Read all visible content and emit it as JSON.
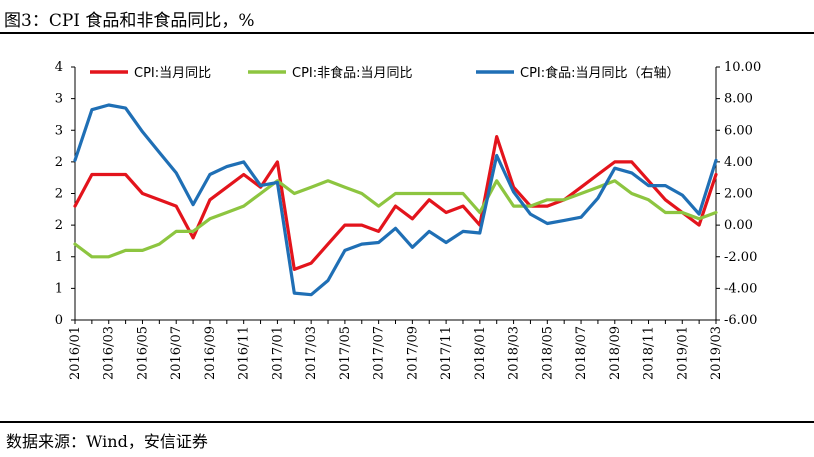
{
  "header": {
    "title": "图3：CPI 食品和非食品同比，%"
  },
  "footer": {
    "source": "数据来源：Wind，安信证券"
  },
  "chart_data": {
    "type": "line",
    "legend_position": "top",
    "grid": false,
    "x_tick_labels": [
      "2016/01",
      "2016/03",
      "2016/05",
      "2016/07",
      "2016/09",
      "2016/11",
      "2017/01",
      "2017/03",
      "2017/05",
      "2017/07",
      "2017/09",
      "2017/11",
      "2018/01",
      "2018/03",
      "2018/05",
      "2018/07",
      "2018/09",
      "2018/11",
      "2019/01",
      "2019/03"
    ],
    "x": [
      "2016/01",
      "2016/02",
      "2016/03",
      "2016/04",
      "2016/05",
      "2016/06",
      "2016/07",
      "2016/08",
      "2016/09",
      "2016/10",
      "2016/11",
      "2016/12",
      "2017/01",
      "2017/02",
      "2017/03",
      "2017/04",
      "2017/05",
      "2017/06",
      "2017/07",
      "2017/08",
      "2017/09",
      "2017/10",
      "2017/11",
      "2017/12",
      "2018/01",
      "2018/02",
      "2018/03",
      "2018/04",
      "2018/05",
      "2018/06",
      "2018/07",
      "2018/08",
      "2018/09",
      "2018/10",
      "2018/11",
      "2018/12",
      "2019/01",
      "2019/02",
      "2019/03"
    ],
    "y_left": {
      "lim": [
        0,
        4.0
      ],
      "tick_values": [
        0,
        0.5,
        1,
        1.5,
        2,
        2.5,
        3,
        3.5,
        4
      ],
      "tick_labels": [
        "0",
        "1",
        "1",
        "2",
        "2",
        "2",
        "3",
        "3",
        "4"
      ]
    },
    "y_right": {
      "lim": [
        -6,
        10
      ],
      "tick_values": [
        -6,
        -4,
        -2,
        0,
        2,
        4,
        6,
        8,
        10
      ],
      "tick_labels": [
        "-6.00",
        "-4.00",
        "-2.00",
        "0.00",
        "2.00",
        "4.00",
        "6.00",
        "8.00",
        "10.00"
      ]
    },
    "series": [
      {
        "name": "CPI:当月同比",
        "axis": "left",
        "color": "#e3141c",
        "values": [
          1.8,
          2.3,
          2.3,
          2.3,
          2.0,
          1.9,
          1.8,
          1.3,
          1.9,
          2.1,
          2.3,
          2.1,
          2.5,
          0.8,
          0.9,
          1.2,
          1.5,
          1.5,
          1.4,
          1.8,
          1.6,
          1.9,
          1.7,
          1.8,
          1.5,
          2.9,
          2.1,
          1.8,
          1.8,
          1.9,
          2.1,
          2.3,
          2.5,
          2.5,
          2.2,
          1.9,
          1.7,
          1.5,
          2.3
        ]
      },
      {
        "name": "CPI:非食品:当月同比",
        "axis": "left",
        "color": "#8dc540",
        "values": [
          1.2,
          1.0,
          1.0,
          1.1,
          1.1,
          1.2,
          1.4,
          1.4,
          1.6,
          1.7,
          1.8,
          2.0,
          2.2,
          2.0,
          2.1,
          2.2,
          2.1,
          2.0,
          1.8,
          2.0,
          2.0,
          2.0,
          2.0,
          2.0,
          1.7,
          2.2,
          1.8,
          1.8,
          1.9,
          1.9,
          2.0,
          2.1,
          2.2,
          2.0,
          1.9,
          1.7,
          1.7,
          1.6,
          1.7
        ]
      },
      {
        "name": "CPI:食品:当月同比（右轴）",
        "axis": "right",
        "color": "#1f6fb5",
        "values": [
          4.1,
          7.3,
          7.6,
          7.4,
          5.9,
          4.6,
          3.3,
          1.3,
          3.2,
          3.7,
          4.0,
          2.5,
          2.7,
          -4.3,
          -4.4,
          -3.5,
          -1.6,
          -1.2,
          -1.1,
          -0.2,
          -1.4,
          -0.4,
          -1.1,
          -0.4,
          -0.5,
          4.4,
          2.1,
          0.7,
          0.1,
          0.3,
          0.5,
          1.7,
          3.6,
          3.3,
          2.5,
          2.5,
          1.9,
          0.7,
          4.1
        ]
      }
    ]
  }
}
